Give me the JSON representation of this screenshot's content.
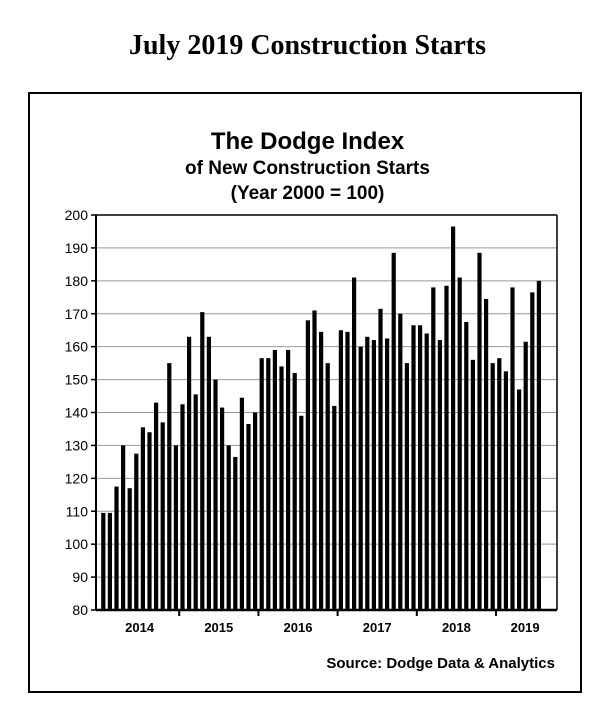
{
  "page_title": "July 2019 Construction Starts",
  "chart": {
    "title": "The Dodge Index",
    "subtitle": "of New Construction Starts",
    "subtitle2": "(Year 2000 = 100)",
    "source": "Source:  Dodge Data & Analytics"
  },
  "chart_data": {
    "type": "bar",
    "title": "The Dodge Index of New Construction Starts (Year 2000 = 100)",
    "xlabel": "",
    "ylabel": "",
    "ylim": [
      80,
      200
    ],
    "yticks": [
      80,
      90,
      100,
      110,
      120,
      130,
      140,
      150,
      160,
      170,
      180,
      190,
      200
    ],
    "grid": true,
    "legend": null,
    "year_labels": [
      "2014",
      "2015",
      "2016",
      "2017",
      "2018",
      "2019"
    ],
    "categories": [
      "Jan 2014",
      "Feb 2014",
      "Mar 2014",
      "Apr 2014",
      "May 2014",
      "Jun 2014",
      "Jul 2014",
      "Aug 2014",
      "Sep 2014",
      "Oct 2014",
      "Nov 2014",
      "Dec 2014",
      "Jan 2015",
      "Feb 2015",
      "Mar 2015",
      "Apr 2015",
      "May 2015",
      "Jun 2015",
      "Jul 2015",
      "Aug 2015",
      "Sep 2015",
      "Oct 2015",
      "Nov 2015",
      "Dec 2015",
      "Jan 2016",
      "Feb 2016",
      "Mar 2016",
      "Apr 2016",
      "May 2016",
      "Jun 2016",
      "Jul 2016",
      "Aug 2016",
      "Sep 2016",
      "Oct 2016",
      "Nov 2016",
      "Dec 2016",
      "Jan 2017",
      "Feb 2017",
      "Mar 2017",
      "Apr 2017",
      "May 2017",
      "Jun 2017",
      "Jul 2017",
      "Aug 2017",
      "Sep 2017",
      "Oct 2017",
      "Nov 2017",
      "Dec 2017",
      "Jan 2018",
      "Feb 2018",
      "Mar 2018",
      "Apr 2018",
      "May 2018",
      "Jun 2018",
      "Jul 2018",
      "Aug 2018",
      "Sep 2018",
      "Oct 2018",
      "Nov 2018",
      "Dec 2018",
      "Jan 2019",
      "Feb 2019",
      "Mar 2019",
      "Apr 2019",
      "May 2019",
      "Jun 2019",
      "Jul 2019"
    ],
    "values": [
      109.5,
      109.5,
      117.5,
      130,
      117,
      127.5,
      135.5,
      134,
      143,
      137,
      155,
      130,
      142.5,
      163,
      145.5,
      170.5,
      163,
      150,
      141.5,
      130,
      126.5,
      144.5,
      136.5,
      140,
      156.5,
      156.5,
      159,
      154,
      159,
      152,
      139,
      168,
      171,
      164.5,
      155,
      142,
      165,
      164.5,
      181,
      160,
      163,
      162,
      171.5,
      162.5,
      188.5,
      170,
      155,
      166.5,
      166.5,
      164,
      178,
      162,
      178.5,
      196.5,
      181,
      167.5,
      156,
      188.5,
      174.5,
      155,
      156.5,
      152.5,
      178,
      147,
      161.5,
      176.5,
      180
    ]
  }
}
